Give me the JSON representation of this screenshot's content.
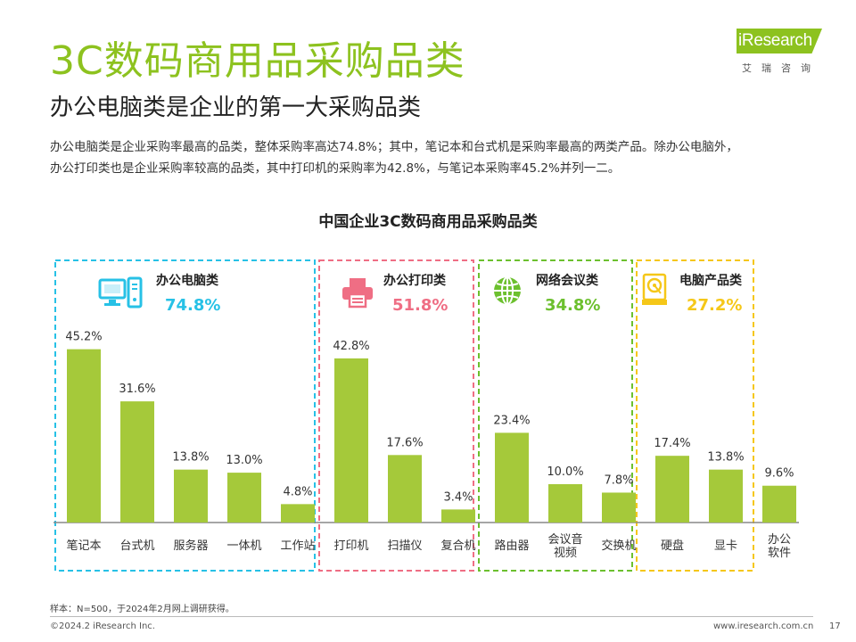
{
  "header": {
    "title": "3C数码商用品采购品类",
    "subtitle": "办公电脑类是企业的第一大采购品类",
    "desc_line1": "办公电脑类是企业采购率最高的品类，整体采购率高达74.8%；其中，笔记本和台式机是采购率最高的两类产品。除办公电脑外，",
    "desc_line2": "办公打印类也是企业采购率较高的品类，其中打印机的采购率为42.8%，与笔记本采购率45.2%并列一二。"
  },
  "logo": {
    "text": "iResearch",
    "subtext": "艾瑞咨询"
  },
  "colors": {
    "accent": "#8dc21f",
    "bar": "#a5c93a"
  },
  "chart_data": {
    "type": "bar",
    "title": "中国企业3C数码商用品采购品类",
    "unit": "%",
    "groups": [
      {
        "name": "办公电脑类",
        "value_label": "74.8%",
        "value": 74.8,
        "icon": "computer-icon",
        "color": "#27c1e6",
        "categories": [
          "笔记本",
          "台式机",
          "服务器",
          "一体机",
          "工作站"
        ],
        "values": [
          45.2,
          31.6,
          13.8,
          13.0,
          4.8
        ]
      },
      {
        "name": "办公打印类",
        "value_label": "51.8%",
        "value": 51.8,
        "icon": "printer-icon",
        "color": "#ef6e84",
        "categories": [
          "打印机",
          "扫描仪",
          "复合机"
        ],
        "values": [
          42.8,
          17.6,
          3.4
        ]
      },
      {
        "name": "网络会议类",
        "value_label": "34.8%",
        "value": 34.8,
        "icon": "globe-icon",
        "color": "#6cc02e",
        "categories": [
          "路由器",
          "会议音视频",
          "交换机"
        ],
        "values": [
          23.4,
          10.0,
          7.8
        ]
      },
      {
        "name": "电脑产品类",
        "value_label": "27.2%",
        "value": 27.2,
        "icon": "hard-drive-icon",
        "color": "#f5c718",
        "categories": [
          "硬盘",
          "显卡"
        ],
        "values": [
          17.4,
          13.8
        ]
      }
    ],
    "extra": {
      "categories": [
        "办公软件"
      ],
      "values": [
        9.6
      ]
    }
  },
  "footer": {
    "note": "样本：N=500，于2024年2月网上调研获得。",
    "copyright": "©2024.2 iResearch Inc.",
    "website": "www.iresearch.com.cn",
    "page": "17"
  }
}
